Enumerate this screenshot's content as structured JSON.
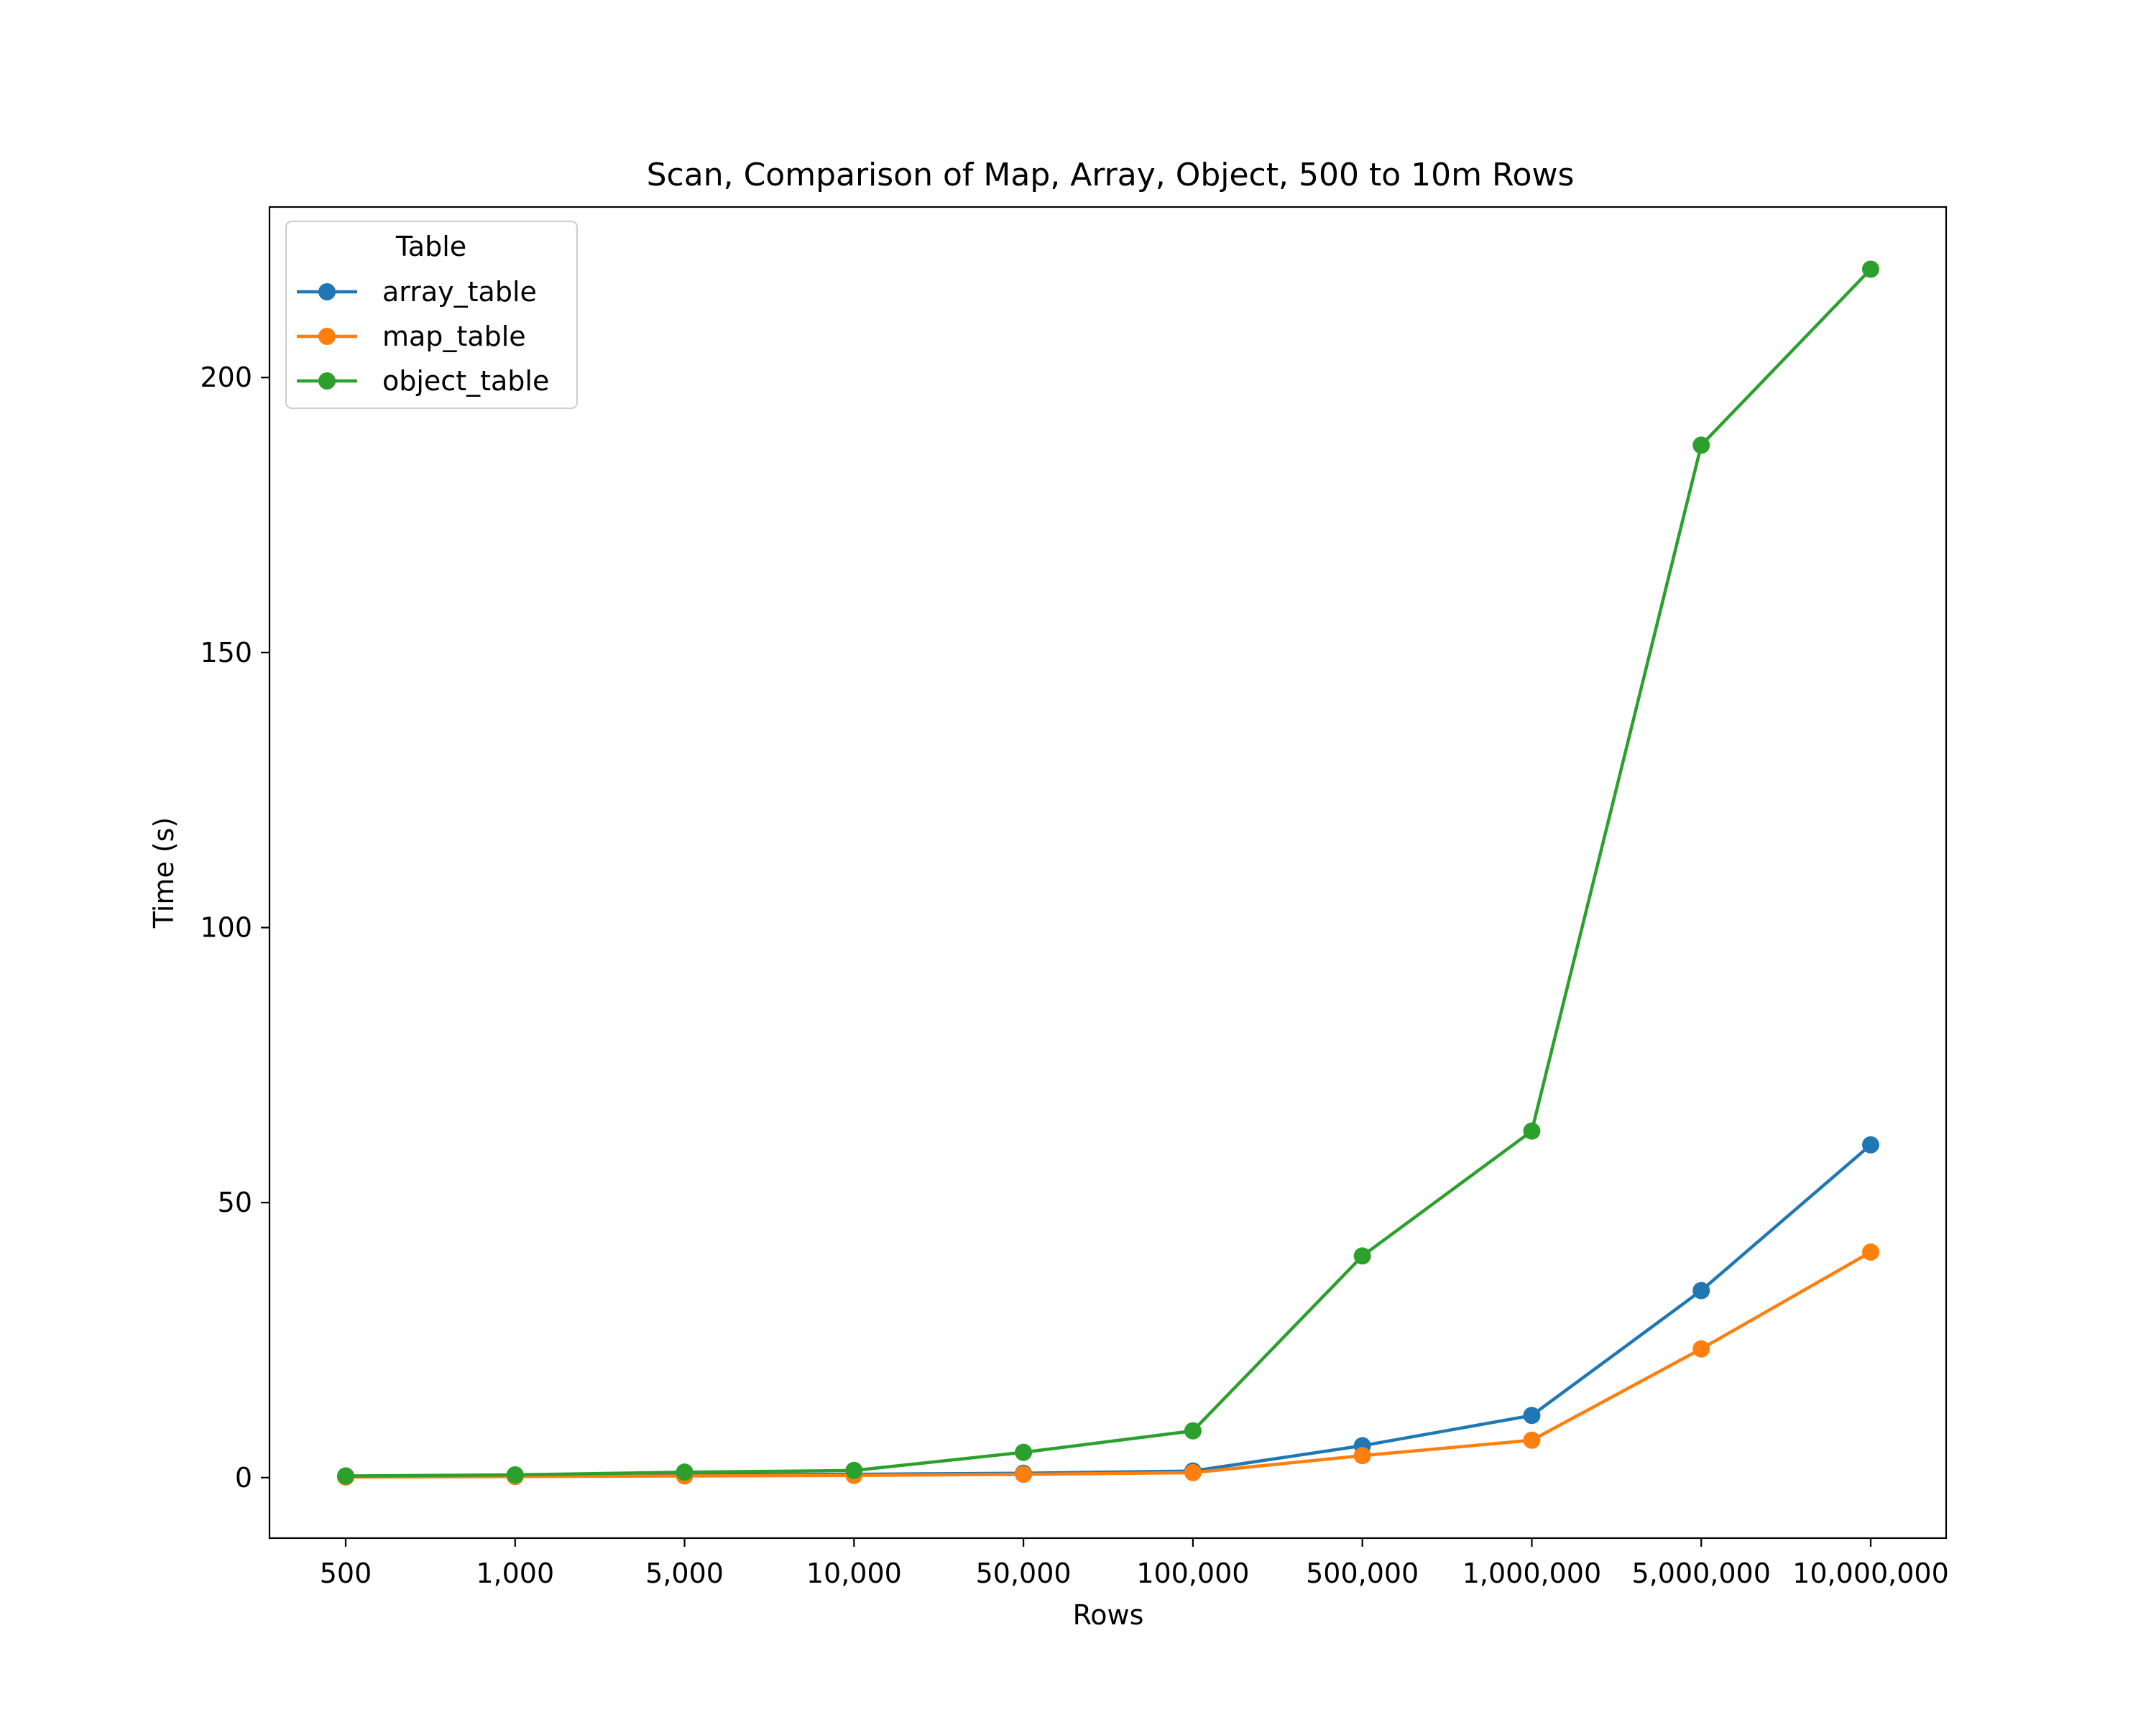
{
  "chart_data": {
    "type": "line",
    "title": "Scan, Comparison of Map, Array, Object, 500 to 10m Rows",
    "xlabel": "Rows",
    "ylabel": "Time (s)",
    "categories": [
      "500",
      "1,000",
      "5,000",
      "10,000",
      "50,000",
      "100,000",
      "500,000",
      "1,000,000",
      "5,000,000",
      "10,000,000"
    ],
    "yticks": [
      "0",
      "50",
      "100",
      "150",
      "200"
    ],
    "ylim": [
      -11,
      231
    ],
    "grid": false,
    "legend": {
      "title": "Table",
      "placement": "top-left"
    },
    "series": [
      {
        "name": "array_table",
        "color": "#1f77b4",
        "values": [
          0.2,
          0.3,
          0.5,
          0.6,
          0.8,
          1.2,
          5.8,
          11.3,
          34.0,
          60.5
        ]
      },
      {
        "name": "map_table",
        "color": "#ff7f0e",
        "values": [
          0.1,
          0.2,
          0.3,
          0.4,
          0.6,
          0.9,
          4.0,
          6.8,
          23.4,
          41.0
        ]
      },
      {
        "name": "object_table",
        "color": "#2ca02c",
        "values": [
          0.3,
          0.5,
          1.0,
          1.3,
          4.6,
          8.5,
          40.3,
          63.0,
          187.7,
          219.7
        ]
      }
    ]
  }
}
